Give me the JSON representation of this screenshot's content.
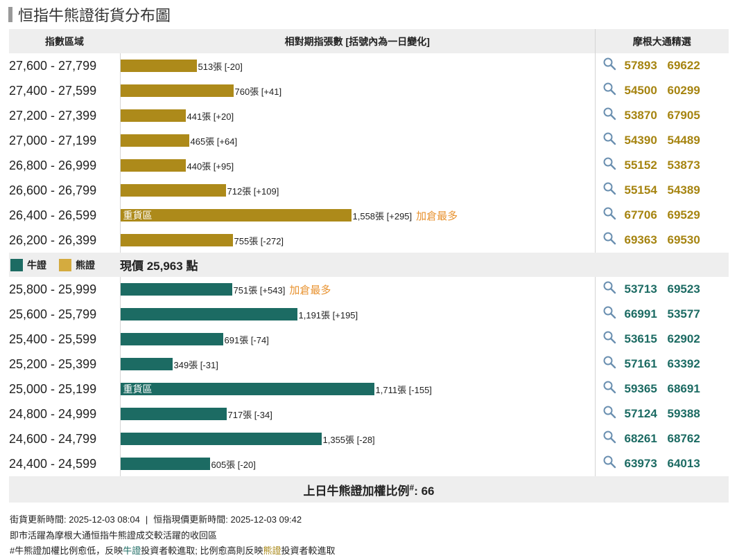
{
  "title": "恒指牛熊證街貨分布圖",
  "headers": {
    "range": "指數區域",
    "change": "相對期指張數 [括號內為一日變化]",
    "picks": "摩根大通精選"
  },
  "colors": {
    "bear": "#ad8a1a",
    "bull": "#1c6b63",
    "note": "#e8922f"
  },
  "bar_scale_max_contracts": 1711,
  "bear_rows": [
    {
      "range": "27,600 - 27,799",
      "contracts": 513,
      "label": "513張 [-20]",
      "note": "",
      "heavy": "",
      "codes": [
        "57893",
        "69622"
      ]
    },
    {
      "range": "27,400 - 27,599",
      "contracts": 760,
      "label": "760張 [+41]",
      "note": "",
      "heavy": "",
      "codes": [
        "54500",
        "60299"
      ]
    },
    {
      "range": "27,200 - 27,399",
      "contracts": 441,
      "label": "441張 [+20]",
      "note": "",
      "heavy": "",
      "codes": [
        "53870",
        "67905"
      ]
    },
    {
      "range": "27,000 - 27,199",
      "contracts": 465,
      "label": "465張 [+64]",
      "note": "",
      "heavy": "",
      "codes": [
        "54390",
        "54489"
      ]
    },
    {
      "range": "26,800 - 26,999",
      "contracts": 440,
      "label": "440張 [+95]",
      "note": "",
      "heavy": "",
      "codes": [
        "55152",
        "53873"
      ]
    },
    {
      "range": "26,600 - 26,799",
      "contracts": 712,
      "label": "712張 [+109]",
      "note": "",
      "heavy": "",
      "codes": [
        "55154",
        "54389"
      ]
    },
    {
      "range": "26,400 - 26,599",
      "contracts": 1558,
      "label": "1,558張 [+295]",
      "note": "加倉最多",
      "heavy": "重貨區",
      "codes": [
        "67706",
        "69529"
      ]
    },
    {
      "range": "26,200 - 26,399",
      "contracts": 755,
      "label": "755張 [-272]",
      "note": "",
      "heavy": "",
      "codes": [
        "69363",
        "69530"
      ]
    }
  ],
  "legend": {
    "bull": "牛證",
    "bear": "熊證"
  },
  "current_price": "現價 25,963 點",
  "bull_rows": [
    {
      "range": "25,800 - 25,999",
      "contracts": 751,
      "label": "751張 [+543]",
      "note": "加倉最多",
      "heavy": "",
      "codes": [
        "53713",
        "69523"
      ]
    },
    {
      "range": "25,600 - 25,799",
      "contracts": 1191,
      "label": "1,191張 [+195]",
      "note": "",
      "heavy": "",
      "codes": [
        "66991",
        "53577"
      ]
    },
    {
      "range": "25,400 - 25,599",
      "contracts": 691,
      "label": "691張 [-74]",
      "note": "",
      "heavy": "",
      "codes": [
        "53615",
        "62902"
      ]
    },
    {
      "range": "25,200 - 25,399",
      "contracts": 349,
      "label": "349張 [-31]",
      "note": "",
      "heavy": "",
      "codes": [
        "57161",
        "63392"
      ]
    },
    {
      "range": "25,000 - 25,199",
      "contracts": 1711,
      "label": "1,711張 [-155]",
      "note": "",
      "heavy": "重貨區",
      "codes": [
        "59365",
        "68691"
      ]
    },
    {
      "range": "24,800 - 24,999",
      "contracts": 717,
      "label": "717張 [-34]",
      "note": "",
      "heavy": "",
      "codes": [
        "57124",
        "59388"
      ]
    },
    {
      "range": "24,600 - 24,799",
      "contracts": 1355,
      "label": "1,355張 [-28]",
      "note": "",
      "heavy": "",
      "codes": [
        "68261",
        "68762"
      ]
    },
    {
      "range": "24,400 - 24,599",
      "contracts": 605,
      "label": "605張 [-20]",
      "note": "",
      "heavy": "",
      "codes": [
        "63973",
        "64013"
      ]
    }
  ],
  "footer": {
    "ratio_label": "上日牛熊證加權比例",
    "ratio_mark": "#",
    "ratio_value": ": 66"
  },
  "notes": {
    "update_street": "街貨更新時間: 2025-12-03 08:04",
    "separator": "|",
    "update_index": "恒指現價更新時間: 2025-12-03 09:42",
    "line2": "即市活躍為摩根大通恒指牛熊證成交較活躍的收回區",
    "line3_a": "#牛熊證加權比例愈低，反映",
    "line3_bull": "牛證",
    "line3_b": "投資者較進取; 比例愈高則反映",
    "line3_bear": "熊證",
    "line3_c": "投資者較進取"
  }
}
